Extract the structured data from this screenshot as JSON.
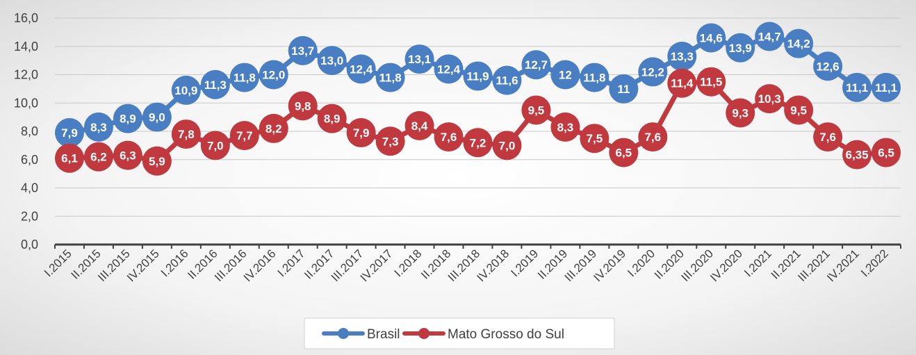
{
  "chart_data": {
    "type": "line",
    "categories": [
      "I.2015",
      "II.2015",
      "III.2015",
      "IV.2015",
      "I.2016",
      "II.2016",
      "III.2016",
      "IV.2016",
      "I.2017",
      "II.2017",
      "III.2017",
      "IV.2017",
      "I.2018",
      "II.2018",
      "III.2018",
      "IV.2018",
      "I.2019",
      "II.2019",
      "III.2019",
      "IV.2019",
      "I.2020",
      "II.2020",
      "III.2020",
      "IV.2020",
      "I.2021",
      "II.2021",
      "III.2021",
      "IV.2021",
      "I.2022"
    ],
    "series": [
      {
        "name": "Brasil",
        "color": "#4a7ec2",
        "values": [
          7.9,
          8.3,
          8.9,
          9.0,
          10.9,
          11.3,
          11.8,
          12.0,
          13.7,
          13.0,
          12.4,
          11.8,
          13.1,
          12.4,
          11.9,
          11.6,
          12.7,
          12,
          11.8,
          11,
          12.2,
          13.3,
          14.6,
          13.9,
          14.7,
          14.2,
          12.6,
          11.1,
          11.1
        ],
        "labels": [
          "7,9",
          "8,3",
          "8,9",
          "9,0",
          "10,9",
          "11,3",
          "11,8",
          "12,0",
          "13,7",
          "13,0",
          "12,4",
          "11,8",
          "13,1",
          "12,4",
          "11,9",
          "11,6",
          "12,7",
          "12",
          "11,8",
          "11",
          "12,2",
          "13,3",
          "14,6",
          "13,9",
          "14,7",
          "14,2",
          "12,6",
          "11,1",
          "11,1"
        ]
      },
      {
        "name": "Mato Grosso do Sul",
        "color": "#c0393e",
        "values": [
          6.1,
          6.2,
          6.3,
          5.9,
          7.8,
          7.0,
          7.7,
          8.2,
          9.8,
          8.9,
          7.9,
          7.3,
          8.4,
          7.6,
          7.2,
          7.0,
          9.5,
          8.3,
          7.5,
          6.5,
          7.6,
          11.4,
          11.5,
          9.3,
          10.3,
          9.5,
          7.6,
          6.35,
          6.5
        ],
        "labels": [
          "6,1",
          "6,2",
          "6,3",
          "5,9",
          "7,8",
          "7,0",
          "7,7",
          "8,2",
          "9,8",
          "8,9",
          "7,9",
          "7,3",
          "8,4",
          "7,6",
          "7,2",
          "7,0",
          "9,5",
          "8,3",
          "7,5",
          "6,5",
          "7,6",
          "11,4",
          "11,5",
          "9,3",
          "10,3",
          "9,5",
          "7,6",
          "6,35",
          "6,5"
        ]
      }
    ],
    "yticks": [
      "0,0",
      "2,0",
      "4,0",
      "6,0",
      "8,0",
      "10,0",
      "12,0",
      "14,0",
      "16,0"
    ],
    "ylim": [
      0,
      16
    ],
    "grid": true,
    "legend_position": "bottom"
  }
}
